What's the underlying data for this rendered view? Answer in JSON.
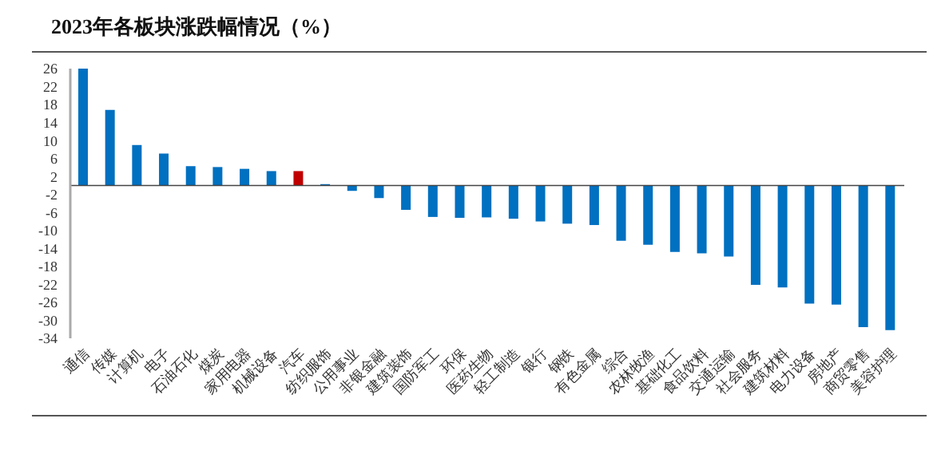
{
  "chart_data": {
    "type": "bar",
    "title": "2023年各板块涨跌幅情况（%）",
    "categories": [
      "通信",
      "传媒",
      "计算机",
      "电子",
      "石油石化",
      "煤炭",
      "家用电器",
      "机械设备",
      "汽车",
      "纺织服饰",
      "公用事业",
      "非银金融",
      "建筑装饰",
      "国防军工",
      "环保",
      "医药生物",
      "轻工制造",
      "银行",
      "钢铁",
      "有色金属",
      "综合",
      "农林牧渔",
      "基础化工",
      "食品饮料",
      "交通运输",
      "社会服务",
      "建筑材料",
      "电力设备",
      "房地产",
      "商贸零售",
      "美容护理"
    ],
    "values": [
      26,
      16.8,
      9,
      7.1,
      4.3,
      4.1,
      3.7,
      3.2,
      3.2,
      0.3,
      -1.2,
      -2.8,
      -5.4,
      -7,
      -7.2,
      -7.1,
      -7.4,
      -8,
      -8.5,
      -8.8,
      -12.3,
      -13.2,
      -14.8,
      -15.1,
      -15.8,
      -22.1,
      -22.7,
      -26.3,
      -26.5,
      -31.5,
      -32.2
    ],
    "colors": [
      "#0070c0",
      "#0070c0",
      "#0070c0",
      "#0070c0",
      "#0070c0",
      "#0070c0",
      "#0070c0",
      "#0070c0",
      "#c00000",
      "#0070c0",
      "#0070c0",
      "#0070c0",
      "#0070c0",
      "#0070c0",
      "#0070c0",
      "#0070c0",
      "#0070c0",
      "#0070c0",
      "#0070c0",
      "#0070c0",
      "#0070c0",
      "#0070c0",
      "#0070c0",
      "#0070c0",
      "#0070c0",
      "#0070c0",
      "#0070c0",
      "#0070c0",
      "#0070c0",
      "#0070c0",
      "#0070c0"
    ],
    "ylim": [
      -34,
      26
    ],
    "yticks": [
      26,
      22,
      18,
      14,
      10,
      6,
      2,
      -2,
      -6,
      -10,
      -14,
      -18,
      -22,
      -26,
      -30,
      -34
    ],
    "grid": false,
    "legend": false
  }
}
